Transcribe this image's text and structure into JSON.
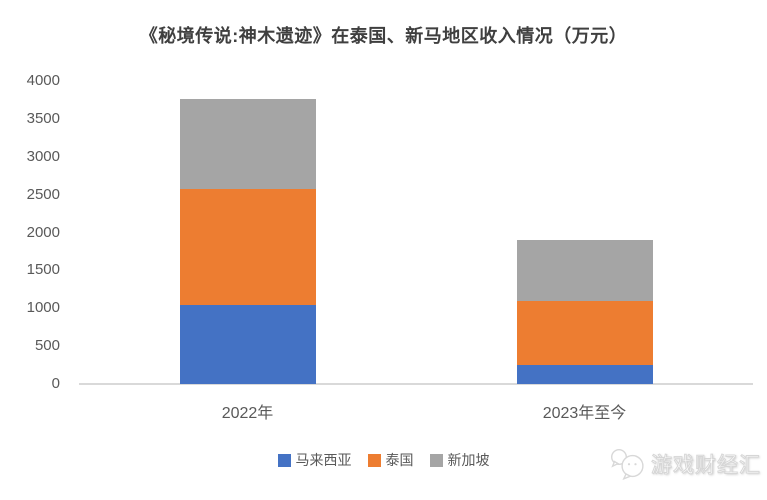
{
  "page": {
    "background": "#FFFFFF"
  },
  "watermark": {
    "label": "游戏财经汇",
    "icon": "speech-bubbles-icon"
  },
  "chart_data": {
    "type": "bar",
    "stacked": true,
    "title": "《秘境传说:神木遗迹》在泰国、新马地区收入情况（万元）",
    "categories": [
      "2022年",
      "2023年至今"
    ],
    "series": [
      {
        "id": "malaysia",
        "name": "马来西亚",
        "color": "#4472C4",
        "values": [
          1040,
          250
        ]
      },
      {
        "id": "thailand",
        "name": "泰国",
        "color": "#ED7D31",
        "values": [
          1540,
          840
        ]
      },
      {
        "id": "singapore",
        "name": "新加坡",
        "color": "#A5A5A5",
        "values": [
          1180,
          810
        ]
      }
    ],
    "stack_totals": [
      3760,
      1900
    ],
    "xlabel": "",
    "ylabel": "",
    "ylim": [
      0,
      4000
    ],
    "yticks": [
      0,
      500,
      1000,
      1500,
      2000,
      2500,
      3000,
      3500,
      4000
    ],
    "grid": false,
    "legend_position": "bottom",
    "axis_line_color": "#D9D9D9",
    "tick_label_color": "#595959",
    "title_color": "#3F3F3F"
  }
}
